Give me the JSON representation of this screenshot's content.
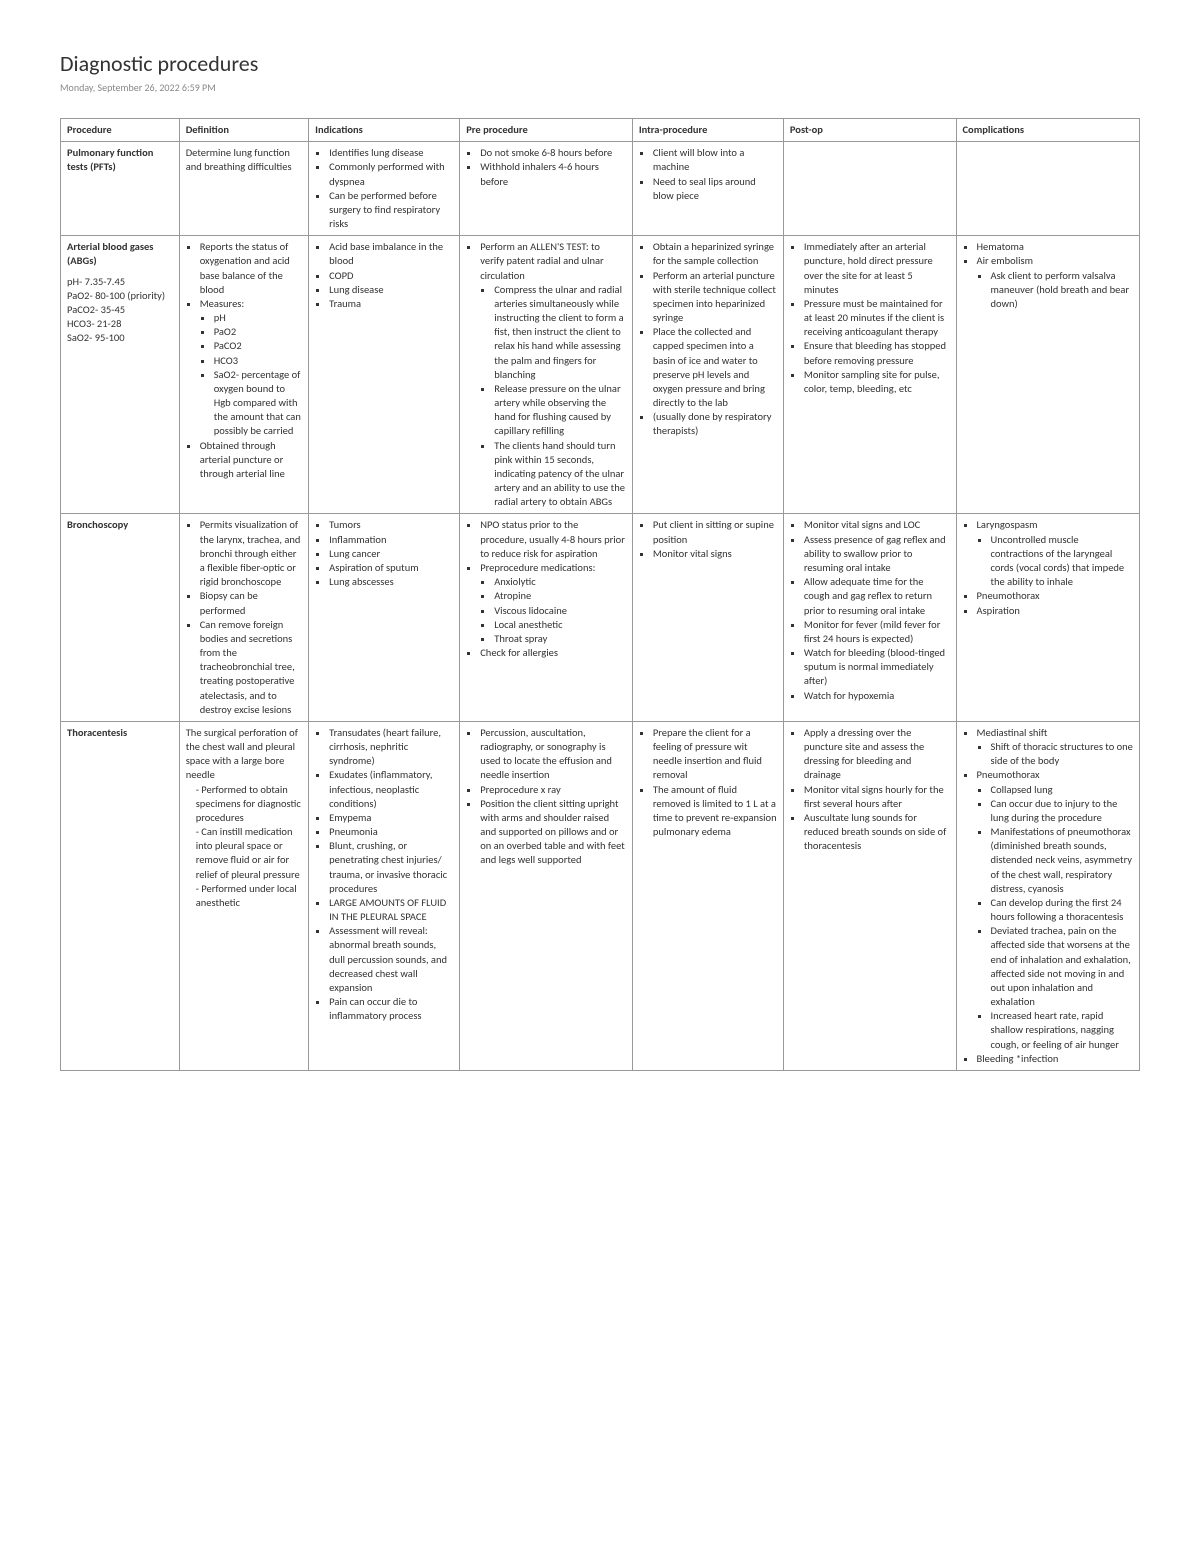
{
  "title": "Diagnostic procedures",
  "meta": "Monday, September 26, 2022      6:59 PM",
  "columns": [
    "Procedure",
    "Definition",
    "Indications",
    "Pre procedure",
    "Intra-procedure",
    "Post-op",
    "Complications"
  ],
  "rows": {
    "pft": {
      "name": "Pulmonary function tests (PFTs)",
      "definition_text": "Determine lung function and breathing difficulties",
      "indications": [
        "Identifies lung disease",
        "Commonly performed with dyspnea",
        "Can be performed before surgery to find respiratory risks"
      ],
      "pre": [
        "Do not smoke 6-8 hours before",
        "Withhold inhalers 4-6 hours before"
      ],
      "intra": [
        "Client will blow into a machine",
        "Need to seal lips around blow piece"
      ]
    },
    "abg": {
      "name": "Arterial blood gases (ABGs)",
      "subvals": [
        "pH- 7.35-7.45",
        "PaO2- 80-100 (priority)",
        "PaCO2- 35-45",
        "HCO3- 21-28",
        "SaO2- 95-100"
      ],
      "definition": {
        "lead": "Reports the status of oxygenation and acid base balance of the blood",
        "measures_label": "Measures:",
        "measures": [
          "pH",
          "PaO2",
          "PaCO2",
          "HCO3",
          "SaO2- percentage of oxygen bound to Hgb compared with the amount that can possibly be carried"
        ],
        "obtained": "Obtained through arterial puncture or through arterial line"
      },
      "indications": [
        "Acid base imbalance in the blood",
        "COPD",
        "Lung disease",
        "Trauma"
      ],
      "pre": {
        "lead": "Perform an ALLEN'S TEST: to verify patent radial and ulnar circulation",
        "items": [
          "Compress the ulnar and radial arteries simultaneously while instructing the client to form a fist, then instruct the client to relax his hand while assessing the palm and fingers for blanching",
          "Release pressure on the ulnar artery while observing the hand for flushing caused by capillary refilling",
          "The clients hand should turn pink within 15 seconds, indicating patency of the ulnar artery and an ability to use the radial artery to obtain ABGs"
        ]
      },
      "intra": [
        "Obtain a heparinized syringe for the sample collection",
        "Perform an arterial puncture with sterile technique collect specimen into heparinized syringe",
        "Place the collected and capped specimen into a basin of ice and water to preserve pH levels and oxygen pressure and bring directly to the lab",
        "(usually done by respiratory therapists)"
      ],
      "post": [
        "Immediately after an arterial puncture, hold direct pressure over the site for at least 5 minutes",
        "Pressure must be maintained for at least 20 minutes if the client is receiving anticoagulant therapy",
        "Ensure that bleeding has stopped before removing pressure",
        "Monitor sampling site for pulse, color, temp, bleeding, etc"
      ],
      "complications": {
        "items": [
          "Hematoma"
        ],
        "air_label": "Air embolism",
        "air_sub": [
          "Ask client to perform valsalva maneuver (hold breath and bear down)"
        ]
      }
    },
    "bronch": {
      "name": "Bronchoscopy",
      "definition": [
        "Permits visualization of the larynx, trachea, and bronchi through either a flexible fiber-optic or rigid bronchoscope",
        "Biopsy can be performed",
        "Can remove foreign bodies and secretions from the tracheobronchial tree, treating postoperative atelectasis, and to destroy excise lesions"
      ],
      "indications": [
        "Tumors",
        "Inflammation",
        "Lung cancer",
        "Aspiration of sputum",
        "Lung abscesses"
      ],
      "pre": {
        "items": [
          "NPO status prior to the procedure, usually 4-8 hours prior to reduce risk for aspiration"
        ],
        "med_label": "Preprocedure medications:",
        "meds": [
          "Anxiolytic",
          "Atropine",
          "Viscous lidocaine",
          "Local anesthetic",
          "Throat spray"
        ],
        "tail": "Check for allergies"
      },
      "intra": [
        "Put client in sitting or supine position",
        "Monitor vital signs"
      ],
      "post": [
        "Monitor vital signs and LOC",
        "Assess presence of gag reflex and ability to swallow prior to resuming oral intake",
        "Allow adequate time for the cough and gag reflex to return prior to resuming oral intake",
        "Monitor for fever (mild fever for first 24 hours is expected)",
        "Watch for bleeding (blood-tinged sputum is normal immediately after)",
        "Watch for hypoxemia"
      ],
      "complications": {
        "lary_label": "Laryngospasm",
        "lary_sub": [
          "Uncontrolled muscle contractions of the laryngeal cords (vocal cords) that impede the ability to inhale"
        ],
        "tail": [
          "Pneumothorax",
          "Aspiration"
        ]
      }
    },
    "thora": {
      "name": "Thoracentesis",
      "definition": {
        "lead": "The surgical perforation of the chest wall and pleural space with a large bore needle",
        "dashes": [
          "Performed to obtain specimens for diagnostic procedures",
          "Can instill medication into pleural space or remove fluid or air for relief of pleural pressure",
          "Performed under local anesthetic"
        ]
      },
      "indications": [
        "Transudates (heart failure, cirrhosis, nephritic syndrome)",
        "Exudates (inflammatory, infectious, neoplastic conditions)",
        "Emypema",
        "Pneumonia",
        "Blunt, crushing, or penetrating chest injuries/ trauma, or invasive thoracic procedures",
        "LARGE AMOUNTS OF FLUID IN THE PLEURAL SPACE",
        "Assessment will reveal: abnormal breath sounds, dull percussion sounds, and decreased chest wall expansion",
        "Pain can occur die to inflammatory process"
      ],
      "pre": [
        "Percussion, auscultation, radiography, or sonography is used to locate the effusion and needle insertion",
        "Preprocedure x ray",
        "Position the client sitting upright with arms and shoulder raised and supported on pillows and or on an overbed table and with feet and legs well supported"
      ],
      "intra": [
        "Prepare the client for a feeling of pressure wit needle insertion and fluid removal",
        "The amount of fluid removed is limited to 1 L at a time to prevent re-expansion pulmonary edema"
      ],
      "post": [
        "Apply a dressing over the puncture site and assess the dressing for bleeding and drainage",
        "Monitor vital signs hourly for the first several hours after",
        "Auscultate lung sounds for reduced breath sounds on side of thoracentesis"
      ],
      "complications": {
        "med_label": "Mediastinal shift",
        "med_sub": [
          "Shift of thoracic structures to one side of the body"
        ],
        "pneu_label": "Pneumothorax",
        "pneu_sub": [
          "Collapsed lung",
          "Can occur due to injury to the lung during the procedure",
          "Manifestations of pneumothorax (diminished breath sounds, distended neck veins, asymmetry of the chest wall, respiratory distress, cyanosis",
          "Can develop during the first 24 hours following a thoracentesis",
          "Deviated trachea, pain on the affected side that worsens at the end of inhalation and exhalation, affected side not moving in and out upon inhalation and exhalation",
          "Increased heart rate, rapid shallow respirations, nagging cough, or feeling of air hunger"
        ],
        "tail": [
          "Bleeding *infection"
        ]
      }
    }
  }
}
